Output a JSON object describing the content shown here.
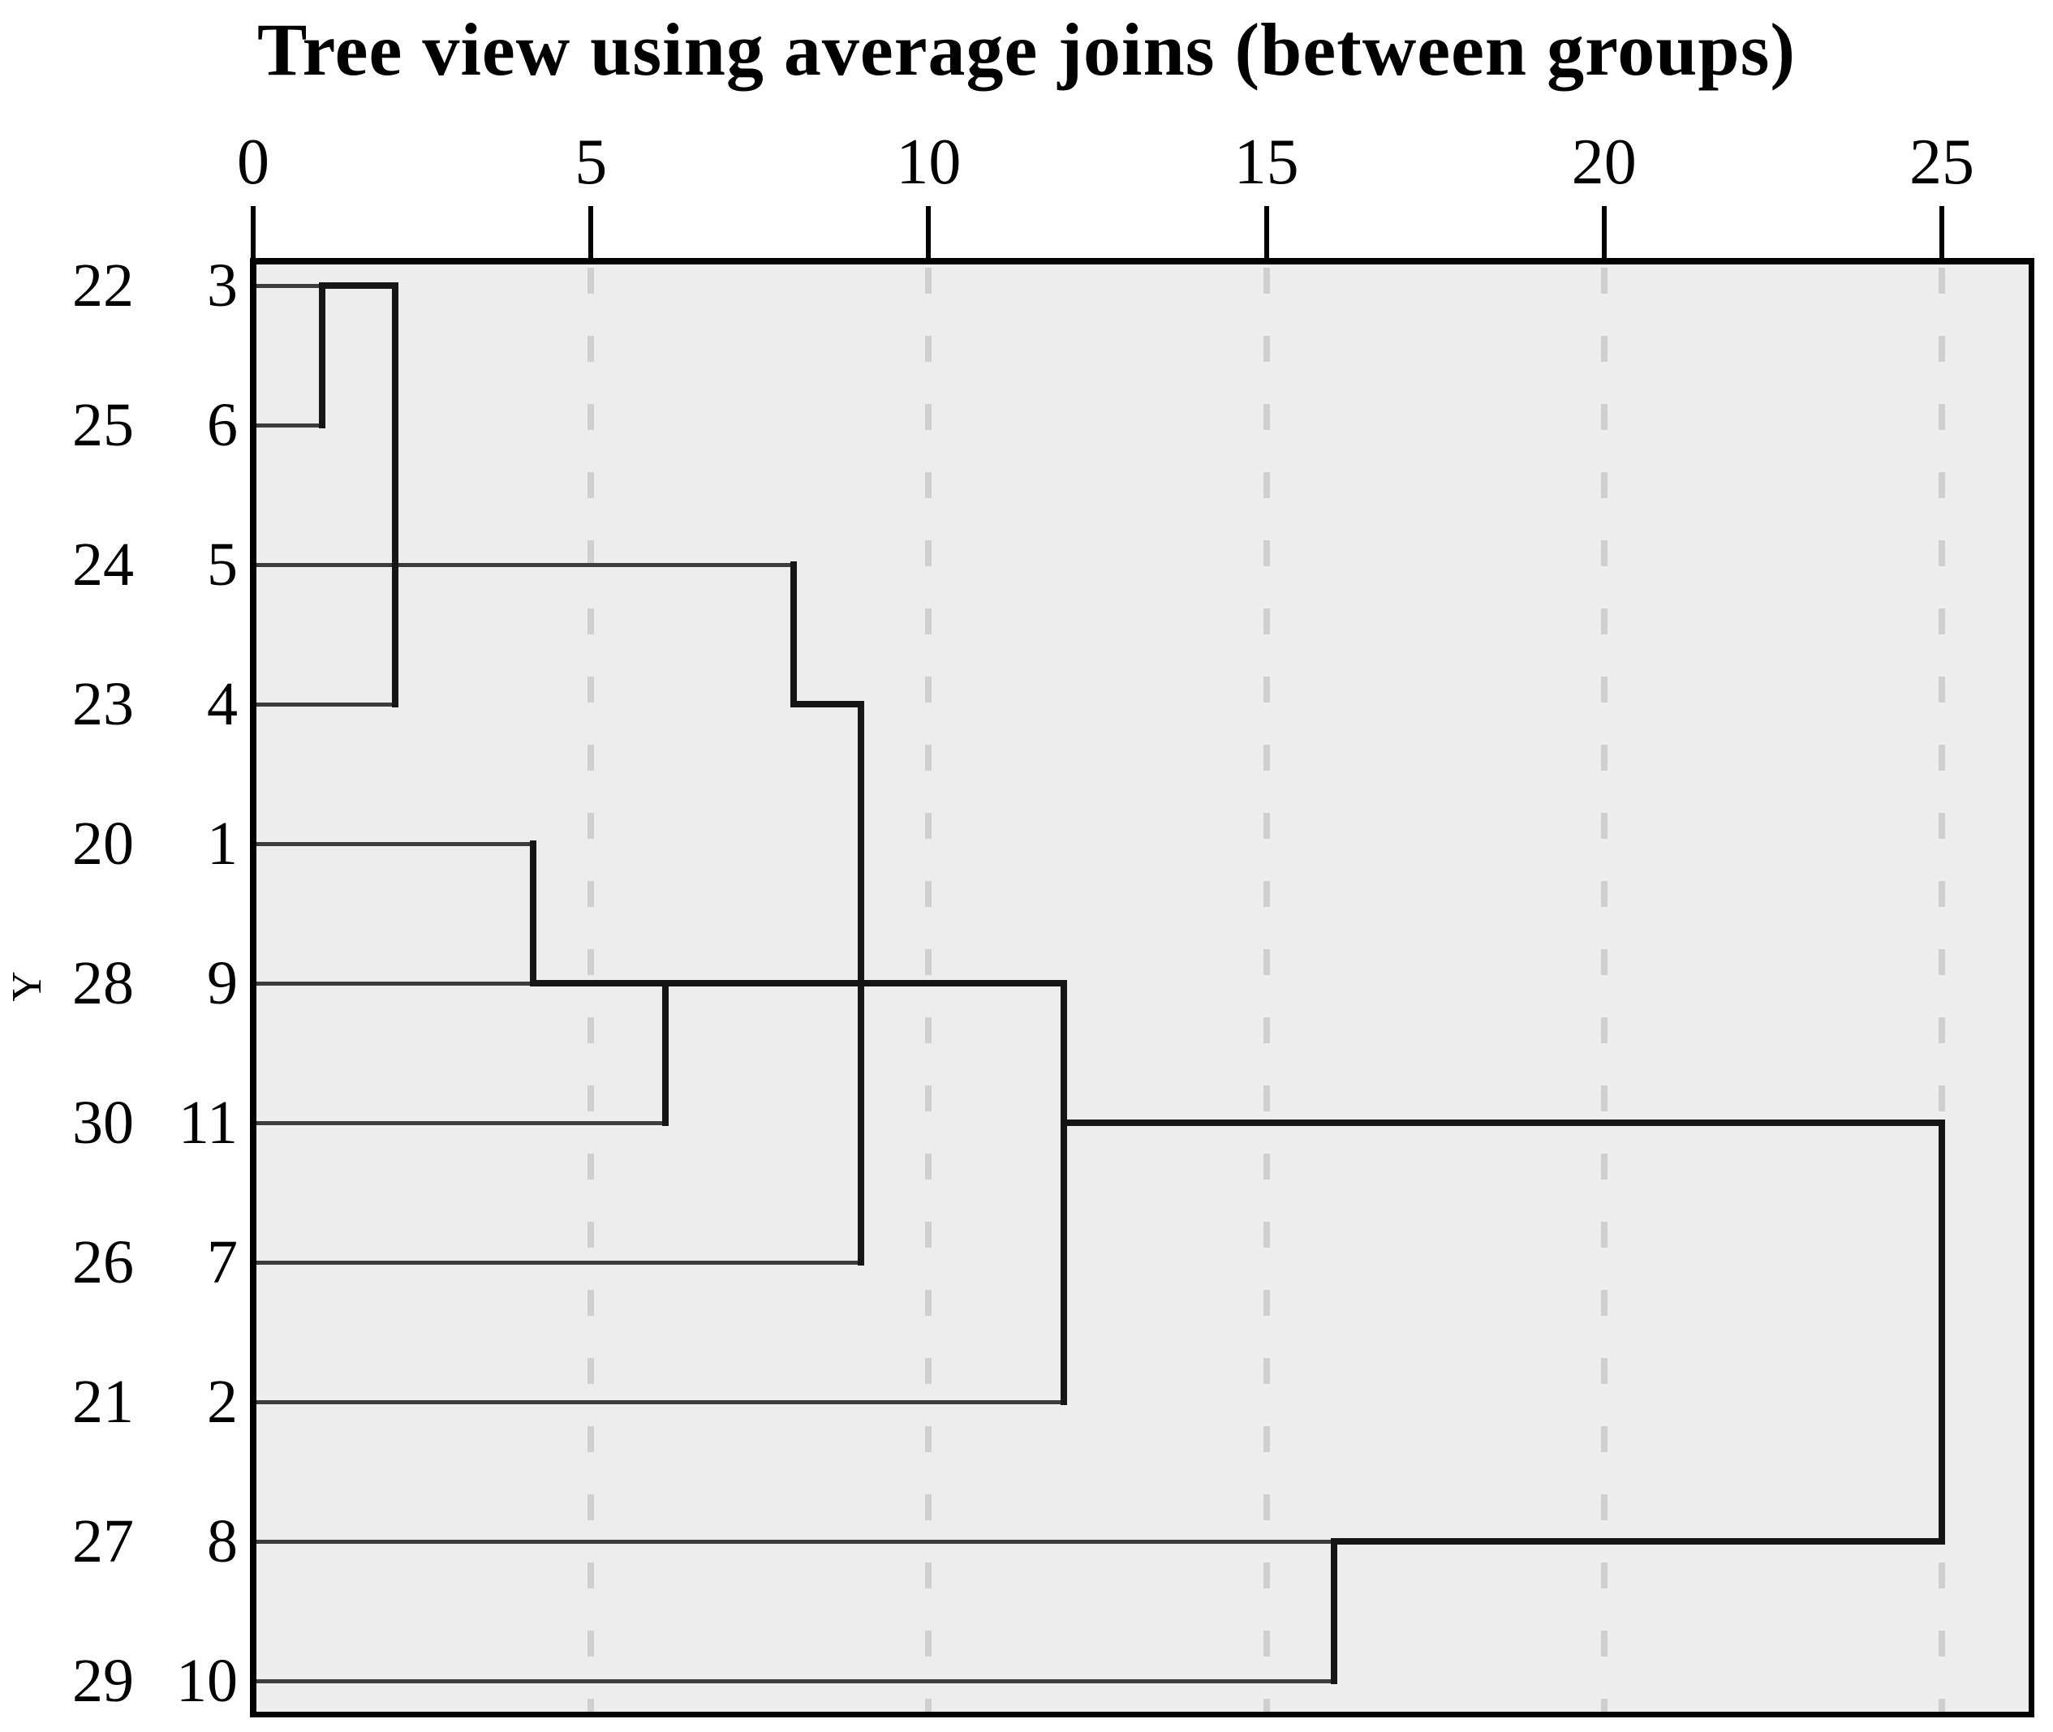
{
  "title": "Tree view using average joins (between groups)",
  "y_axis_label": "Y",
  "chart_data": {
    "type": "dendrogram",
    "orientation": "horizontal",
    "title": "Tree view using average joins (between groups)",
    "ylabel": "Y",
    "xlim": [
      0,
      26.3
    ],
    "grid": "dashed vertical gridlines at labeled ticks (except 0)",
    "distance_axis": {
      "position": "top",
      "ticks": [
        0,
        5,
        10,
        15,
        20,
        25
      ],
      "gridlines": [
        5,
        10,
        15,
        20,
        25
      ]
    },
    "rows": [
      {
        "case": "22",
        "leaf": "3"
      },
      {
        "case": "25",
        "leaf": "6"
      },
      {
        "case": "24",
        "leaf": "5"
      },
      {
        "case": "23",
        "leaf": "4"
      },
      {
        "case": "20",
        "leaf": "1"
      },
      {
        "case": "28",
        "leaf": "9"
      },
      {
        "case": "30",
        "leaf": "11"
      },
      {
        "case": "26",
        "leaf": "7"
      },
      {
        "case": "21",
        "leaf": "2"
      },
      {
        "case": "27",
        "leaf": "8"
      },
      {
        "case": "29",
        "leaf": "10"
      }
    ],
    "joins": [
      {
        "a": "3",
        "b": "6",
        "distance": 1.0
      },
      {
        "a": "(3,6)",
        "b": "4",
        "distance": 2.1
      },
      {
        "a": "1",
        "b": "9",
        "distance": 4.1
      },
      {
        "a": "(1,9)",
        "b": "11",
        "distance": 6.1
      },
      {
        "a": "(3,6,4)",
        "b": "5",
        "distance": 8.0
      },
      {
        "a": "(3,6,4,5)",
        "b": "(1,9,11)",
        "distance": 9.0
      },
      {
        "a": "(3,6,4,5,1,9,11)",
        "b": "7",
        "distance": 9.0
      },
      {
        "a": "(3,6,4,5,1,9,11,7)",
        "b": "2",
        "distance": 12.0
      },
      {
        "a": "8",
        "b": "10",
        "distance": 16.0
      },
      {
        "a": "(3,6,4,5,1,9,11,7,2)",
        "b": "(8,10)",
        "distance": 25.0
      }
    ],
    "segments": {
      "horizontals": [
        {
          "row": "3",
          "from": 0,
          "to": 1.02,
          "kind": "leaf"
        },
        {
          "row": "6",
          "from": 0,
          "to": 1.02,
          "kind": "leaf"
        },
        {
          "row": "5",
          "from": 0,
          "to": 8.0,
          "kind": "leaf"
        },
        {
          "row": "4",
          "from": 0,
          "to": 2.1,
          "kind": "leaf"
        },
        {
          "row": "1",
          "from": 0,
          "to": 4.14,
          "kind": "leaf"
        },
        {
          "row": "9",
          "from": 0,
          "to": 4.14,
          "kind": "leaf"
        },
        {
          "row": "11",
          "from": 0,
          "to": 6.1,
          "kind": "leaf"
        },
        {
          "row": "7",
          "from": 0,
          "to": 9.0,
          "kind": "leaf"
        },
        {
          "row": "2",
          "from": 0,
          "to": 12.0,
          "kind": "leaf"
        },
        {
          "row": "8",
          "from": 0,
          "to": 16.0,
          "kind": "leaf"
        },
        {
          "row": "10",
          "from": 0,
          "to": 16.0,
          "kind": "leaf"
        },
        {
          "row": "3",
          "from": 1.02,
          "to": 2.1,
          "kind": "cluster"
        },
        {
          "row": "9",
          "from": 4.14,
          "to": 12.0,
          "kind": "cluster"
        },
        {
          "row": "4",
          "from": 8.0,
          "to": 9.0,
          "kind": "cluster"
        },
        {
          "row": "11",
          "from": 12.0,
          "to": 25.0,
          "kind": "cluster"
        },
        {
          "row": "8",
          "from": 16.0,
          "to": 25.0,
          "kind": "cluster"
        }
      ],
      "verticals": [
        {
          "at": 1.02,
          "top_row": "3",
          "bottom_row": "6"
        },
        {
          "at": 2.1,
          "top_row": "3",
          "bottom_row": "4"
        },
        {
          "at": 4.14,
          "top_row": "1",
          "bottom_row": "9"
        },
        {
          "at": 6.1,
          "top_row": "9",
          "bottom_row": "11"
        },
        {
          "at": 8.0,
          "top_row": "5",
          "bottom_row": "4"
        },
        {
          "at": 9.0,
          "top_row": "4",
          "bottom_row": "7"
        },
        {
          "at": 12.0,
          "top_row": "9",
          "bottom_row": "2"
        },
        {
          "at": 16.0,
          "top_row": "8",
          "bottom_row": "10"
        },
        {
          "at": 25.0,
          "top_row": "11",
          "bottom_row": "8"
        }
      ]
    },
    "colors": {
      "plot_background": "#ededed",
      "gridline": "#cfcfcf",
      "leaf_line": "#3c3c3c",
      "join_line": "#161616",
      "border": "#000000",
      "text": "#000000"
    }
  }
}
